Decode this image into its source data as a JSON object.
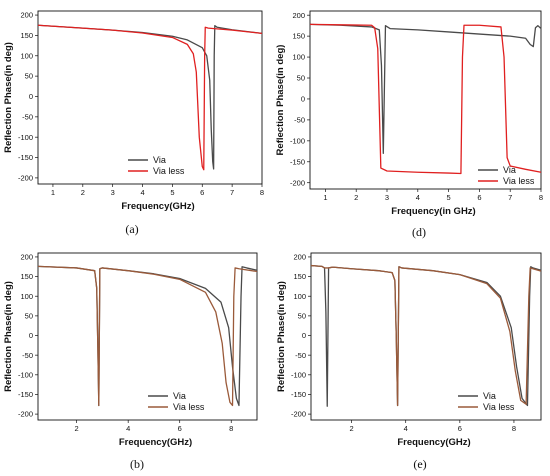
{
  "chart_data": [
    {
      "type": "line",
      "caption": "(a)",
      "xlabel": "Frequency(GHz)",
      "ylabel": "Reflection Phase(in deg)",
      "xlim": [
        0.5,
        8
      ],
      "ylim": [
        -215,
        210
      ],
      "xticks": [
        1,
        2,
        3,
        4,
        5,
        6,
        7,
        8
      ],
      "yticks": [
        200,
        150,
        100,
        50,
        0,
        -50,
        -100,
        -150,
        -200
      ],
      "legend": "bottom-center",
      "series": [
        {
          "name": "Via",
          "color": "#4a4a4a",
          "x": [
            0.5,
            2,
            3,
            4,
            5,
            5.5,
            6.0,
            6.15,
            6.25,
            6.3,
            6.35,
            6.38,
            6.4,
            6.42,
            6.5,
            7,
            8
          ],
          "y": [
            175,
            168,
            163,
            157,
            148,
            139,
            120,
            100,
            40,
            -80,
            -160,
            -178,
            100,
            174,
            170,
            164,
            155
          ]
        },
        {
          "name": "Via less",
          "color": "#e02020",
          "x": [
            0.5,
            2,
            3,
            4,
            5,
            5.5,
            5.7,
            5.8,
            5.85,
            5.9,
            6.0,
            6.05,
            6.08,
            6.1,
            6.2,
            7,
            8
          ],
          "y": [
            175,
            168,
            163,
            156,
            145,
            128,
            105,
            60,
            -20,
            -100,
            -172,
            -180,
            100,
            170,
            168,
            163,
            155
          ]
        }
      ]
    },
    {
      "type": "line",
      "caption": "(d)",
      "xlabel": "Frequency(in GHz)",
      "ylabel": "Reflection Phase(in deg)",
      "xlim": [
        0.5,
        8
      ],
      "ylim": [
        -215,
        210
      ],
      "xticks": [
        1,
        2,
        3,
        4,
        5,
        6,
        7,
        8
      ],
      "yticks": [
        200,
        150,
        100,
        50,
        0,
        -50,
        -100,
        -150,
        -200
      ],
      "legend": "bottom-right",
      "series": [
        {
          "name": "Via",
          "color": "#4a4a4a",
          "x": [
            0.5,
            1.5,
            2.5,
            2.75,
            2.82,
            2.88,
            2.95,
            3.1,
            4,
            5,
            6,
            7,
            7.5,
            7.65,
            7.75,
            7.82,
            7.9,
            8
          ],
          "y": [
            178,
            176,
            172,
            165,
            80,
            -130,
            175,
            168,
            165,
            160,
            155,
            150,
            145,
            130,
            125,
            170,
            175,
            168
          ]
        },
        {
          "name": "Via less",
          "color": "#e02020",
          "x": [
            0.5,
            1.5,
            2.5,
            2.6,
            2.7,
            2.8,
            3.0,
            4,
            5,
            5.4,
            5.45,
            5.5,
            6,
            6.7,
            6.8,
            6.9,
            7.0,
            7.5,
            8
          ],
          "y": [
            178,
            177,
            176,
            170,
            120,
            -165,
            -172,
            -175,
            -177,
            -178,
            100,
            176,
            176,
            172,
            100,
            -140,
            -160,
            -168,
            -175
          ]
        }
      ]
    },
    {
      "type": "line",
      "caption": "(b)",
      "xlabel": "Frequency(GHz)",
      "ylabel": "Reflection Phase(in deg)",
      "xlim": [
        0.5,
        9
      ],
      "ylim": [
        -215,
        210
      ],
      "xticks": [
        2,
        4,
        6,
        8
      ],
      "yticks": [
        200,
        150,
        100,
        50,
        0,
        -50,
        -100,
        -150,
        -200
      ],
      "legend": "bottom-right",
      "series": [
        {
          "name": "Via",
          "color": "#4a4a4a",
          "x": [
            0.5,
            2,
            2.7,
            2.78,
            2.82,
            2.86,
            2.9,
            3.0,
            4,
            5,
            6,
            7,
            7.6,
            7.9,
            8.05,
            8.2,
            8.3,
            8.38,
            8.42,
            8.6,
            9
          ],
          "y": [
            176,
            172,
            165,
            120,
            -20,
            -178,
            170,
            172,
            165,
            157,
            145,
            120,
            85,
            20,
            -80,
            -160,
            -178,
            100,
            175,
            172,
            166
          ]
        },
        {
          "name": "Via less",
          "color": "#9a5a3a",
          "x": [
            0.5,
            2,
            2.7,
            2.78,
            2.82,
            2.86,
            2.9,
            3.0,
            4,
            5,
            6,
            7,
            7.4,
            7.65,
            7.8,
            7.95,
            8.05,
            8.1,
            8.15,
            8.3,
            9
          ],
          "y": [
            176,
            172,
            165,
            120,
            -20,
            -178,
            170,
            172,
            165,
            156,
            143,
            110,
            60,
            -20,
            -120,
            -170,
            -178,
            100,
            172,
            170,
            163
          ]
        }
      ]
    },
    {
      "type": "line",
      "caption": "(e)",
      "xlabel": "Frequency(GHz)",
      "ylabel": "Reflection Phase(in deg)",
      "xlim": [
        0.5,
        9
      ],
      "ylim": [
        -215,
        210
      ],
      "xticks": [
        2,
        4,
        6,
        8
      ],
      "yticks": [
        200,
        150,
        100,
        50,
        0,
        -50,
        -100,
        -150,
        -200
      ],
      "legend": "bottom-right",
      "series": [
        {
          "name": "Via",
          "color": "#4a4a4a",
          "x": [
            0.5,
            0.9,
            1.0,
            1.05,
            1.1,
            1.15,
            1.3,
            2,
            3,
            3.5,
            3.6,
            3.65,
            3.7,
            3.75,
            3.85,
            5,
            6,
            7,
            7.5,
            7.9,
            8.1,
            8.3,
            8.5,
            8.58,
            8.62,
            8.7,
            9
          ],
          "y": [
            178,
            176,
            172,
            60,
            -180,
            172,
            174,
            170,
            165,
            160,
            140,
            0,
            -178,
            175,
            172,
            165,
            155,
            135,
            100,
            20,
            -80,
            -160,
            -178,
            100,
            175,
            172,
            166
          ]
        },
        {
          "name": "Via less",
          "color": "#9a5a3a",
          "x": [
            0.5,
            0.9,
            1.0,
            1.05,
            1.1,
            1.15,
            1.3,
            2,
            3,
            3.5,
            3.6,
            3.65,
            3.7,
            3.75,
            3.85,
            5,
            6,
            7,
            7.5,
            7.85,
            8.05,
            8.25,
            8.45,
            8.55,
            8.6,
            8.7,
            9
          ],
          "y": [
            178,
            176,
            172,
            172,
            172,
            172,
            174,
            170,
            165,
            160,
            140,
            0,
            -178,
            175,
            172,
            165,
            155,
            132,
            95,
            10,
            -90,
            -165,
            -175,
            100,
            172,
            170,
            164
          ]
        }
      ]
    }
  ]
}
